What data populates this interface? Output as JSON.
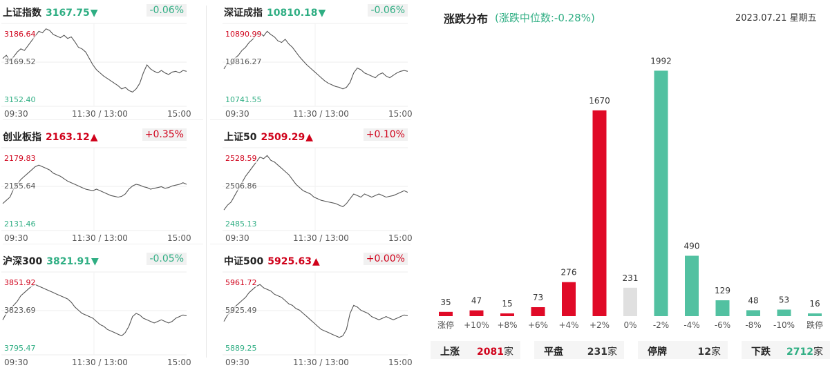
{
  "indices": [
    {
      "name": "上证指数",
      "price": "3167.75",
      "arrow": "▼",
      "dir": "down",
      "change": "-0.06%",
      "high": "3186.64",
      "mid": "3169.52",
      "low": "3152.40",
      "series": [
        0.58,
        0.62,
        0.55,
        0.6,
        0.66,
        0.7,
        0.68,
        0.74,
        0.8,
        0.86,
        0.92,
        0.9,
        0.95,
        0.93,
        0.88,
        0.86,
        0.84,
        0.87,
        0.83,
        0.85,
        0.79,
        0.72,
        0.7,
        0.66,
        0.58,
        0.5,
        0.44,
        0.4,
        0.36,
        0.33,
        0.3,
        0.27,
        0.24,
        0.2,
        0.22,
        0.18,
        0.16,
        0.2,
        0.27,
        0.4,
        0.5,
        0.45,
        0.42,
        0.4,
        0.43,
        0.4,
        0.38,
        0.41,
        0.42,
        0.4,
        0.43,
        0.42
      ]
    },
    {
      "name": "深证成指",
      "price": "10810.18",
      "arrow": "▼",
      "dir": "down",
      "change": "-0.06%",
      "high": "10890.99",
      "mid": "10816.27",
      "low": "10741.55",
      "series": [
        0.45,
        0.52,
        0.5,
        0.58,
        0.62,
        0.68,
        0.72,
        0.78,
        0.82,
        0.88,
        0.9,
        0.86,
        0.92,
        0.88,
        0.85,
        0.8,
        0.78,
        0.82,
        0.76,
        0.72,
        0.66,
        0.6,
        0.55,
        0.5,
        0.46,
        0.42,
        0.38,
        0.34,
        0.3,
        0.27,
        0.25,
        0.23,
        0.22,
        0.2,
        0.22,
        0.28,
        0.4,
        0.46,
        0.44,
        0.4,
        0.38,
        0.36,
        0.34,
        0.38,
        0.4,
        0.36,
        0.34,
        0.37,
        0.4,
        0.42,
        0.43,
        0.42
      ]
    },
    {
      "name": "创业板指",
      "price": "2163.12",
      "arrow": "▲",
      "dir": "up",
      "change": "+0.35%",
      "high": "2179.83",
      "mid": "2155.64",
      "low": "2131.46",
      "series": [
        0.32,
        0.36,
        0.4,
        0.5,
        0.56,
        0.62,
        0.66,
        0.7,
        0.74,
        0.78,
        0.8,
        0.78,
        0.76,
        0.74,
        0.7,
        0.68,
        0.66,
        0.63,
        0.6,
        0.58,
        0.56,
        0.54,
        0.52,
        0.5,
        0.49,
        0.48,
        0.5,
        0.48,
        0.46,
        0.44,
        0.42,
        0.41,
        0.4,
        0.41,
        0.44,
        0.5,
        0.54,
        0.56,
        0.55,
        0.53,
        0.52,
        0.5,
        0.51,
        0.52,
        0.53,
        0.51,
        0.52,
        0.54,
        0.55,
        0.56,
        0.58,
        0.56
      ]
    },
    {
      "name": "上证50",
      "price": "2509.29",
      "arrow": "▲",
      "dir": "up",
      "change": "+0.10%",
      "high": "2528.59",
      "mid": "2506.86",
      "low": "2485.13",
      "series": [
        0.24,
        0.3,
        0.34,
        0.42,
        0.5,
        0.58,
        0.66,
        0.72,
        0.78,
        0.84,
        0.9,
        0.88,
        0.92,
        0.86,
        0.84,
        0.8,
        0.76,
        0.72,
        0.68,
        0.62,
        0.56,
        0.52,
        0.48,
        0.46,
        0.44,
        0.4,
        0.38,
        0.36,
        0.35,
        0.34,
        0.33,
        0.32,
        0.3,
        0.28,
        0.32,
        0.38,
        0.44,
        0.42,
        0.4,
        0.44,
        0.42,
        0.4,
        0.42,
        0.44,
        0.42,
        0.4,
        0.41,
        0.42,
        0.44,
        0.46,
        0.48,
        0.46
      ]
    },
    {
      "name": "沪深300",
      "price": "3821.91",
      "arrow": "▼",
      "dir": "down",
      "change": "-0.05%",
      "high": "3851.92",
      "mid": "3823.69",
      "low": "3795.47",
      "series": [
        0.42,
        0.5,
        0.55,
        0.6,
        0.65,
        0.72,
        0.76,
        0.8,
        0.84,
        0.86,
        0.84,
        0.82,
        0.8,
        0.78,
        0.76,
        0.74,
        0.72,
        0.7,
        0.68,
        0.64,
        0.58,
        0.54,
        0.5,
        0.48,
        0.46,
        0.44,
        0.4,
        0.36,
        0.34,
        0.3,
        0.28,
        0.26,
        0.24,
        0.22,
        0.26,
        0.34,
        0.46,
        0.5,
        0.48,
        0.44,
        0.42,
        0.4,
        0.38,
        0.4,
        0.42,
        0.4,
        0.38,
        0.4,
        0.44,
        0.46,
        0.48,
        0.47
      ]
    },
    {
      "name": "中证500",
      "price": "5925.63",
      "arrow": "▲",
      "dir": "up",
      "change": "+0.00%",
      "high": "5961.72",
      "mid": "5925.49",
      "low": "5889.25",
      "series": [
        0.4,
        0.48,
        0.52,
        0.58,
        0.62,
        0.66,
        0.7,
        0.76,
        0.8,
        0.84,
        0.86,
        0.82,
        0.8,
        0.78,
        0.74,
        0.72,
        0.7,
        0.66,
        0.62,
        0.6,
        0.56,
        0.54,
        0.5,
        0.46,
        0.42,
        0.38,
        0.34,
        0.3,
        0.28,
        0.26,
        0.24,
        0.22,
        0.2,
        0.22,
        0.3,
        0.5,
        0.6,
        0.58,
        0.54,
        0.52,
        0.5,
        0.46,
        0.44,
        0.42,
        0.44,
        0.46,
        0.44,
        0.42,
        0.44,
        0.46,
        0.48,
        0.47
      ]
    }
  ],
  "time_labels": {
    "start": "09:30",
    "mid": "11:30 / 13:00",
    "end": "15:00"
  },
  "distribution": {
    "title": "涨跌分布",
    "subtitle": "(涨跌中位数:-0.28%)",
    "date": "2023.07.21 星期五",
    "colors": {
      "up": "#e00a27",
      "flat": "#e0e0e0",
      "down": "#52c1a1",
      "up_text": "#d0021b",
      "down_text": "#2fae83"
    },
    "summary": [
      {
        "label": "上涨",
        "value": "2081",
        "unit": "家",
        "dir": "up"
      },
      {
        "label": "平盘",
        "value": "231",
        "unit": "家",
        "dir": "flat"
      },
      {
        "label": "停牌",
        "value": "12",
        "unit": "家",
        "dir": "flat"
      },
      {
        "label": "下跌",
        "value": "2712",
        "unit": "家",
        "dir": "down"
      }
    ]
  },
  "chart_data": {
    "type": "bar",
    "title": "涨跌分布",
    "categories": [
      "涨停",
      "+10%",
      "+8%",
      "+6%",
      "+4%",
      "+2%",
      "0%",
      "-2%",
      "-4%",
      "-6%",
      "-8%",
      "-10%",
      "跌停"
    ],
    "values": [
      35,
      47,
      15,
      73,
      276,
      1670,
      231,
      1992,
      490,
      129,
      48,
      53,
      16
    ],
    "bar_colors": [
      "up",
      "up",
      "up",
      "up",
      "up",
      "up",
      "flat",
      "down",
      "down",
      "down",
      "down",
      "down",
      "down"
    ],
    "ylim": [
      0,
      2000
    ],
    "grid": false
  }
}
